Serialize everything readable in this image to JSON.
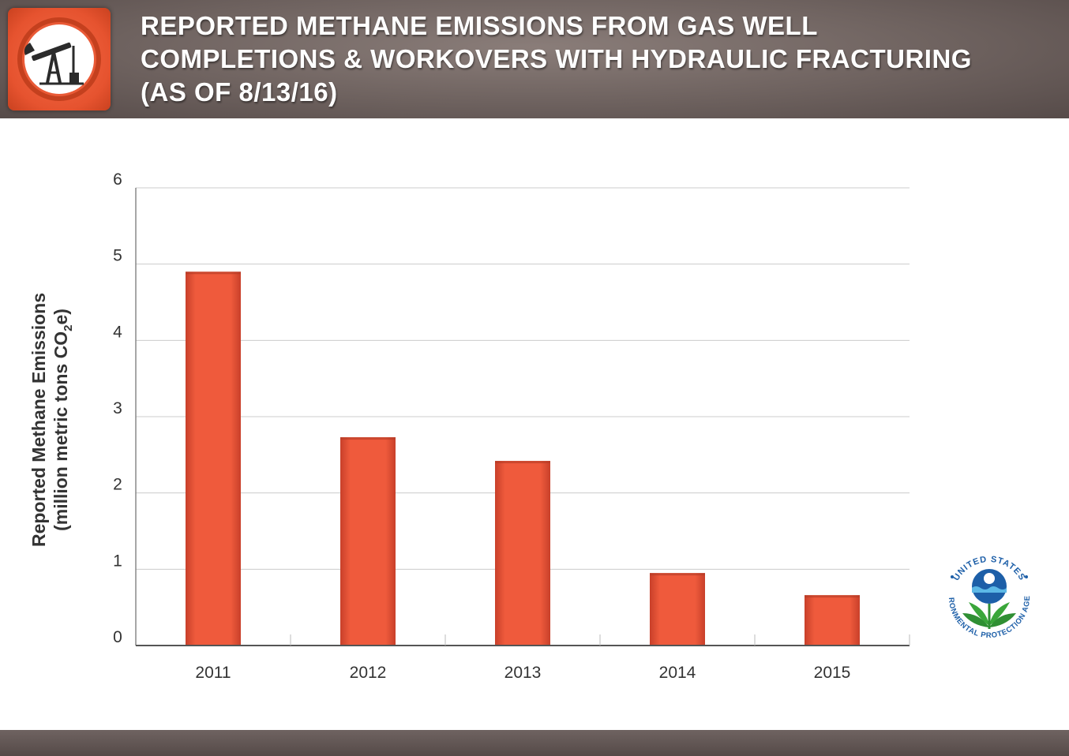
{
  "header": {
    "icon": "oil-pump-icon",
    "title_lines": [
      "REPORTED METHANE EMISSIONS FROM GAS WELL",
      "COMPLETIONS & WORKOVERS WITH HYDRAULIC FRACTURING",
      "(AS OF 8/13/16)"
    ]
  },
  "logo": {
    "icon": "epa-seal-icon",
    "text": "UNITED STATES ENVIRONMENTAL PROTECTION AGENCY"
  },
  "colors": {
    "header_bg": "#6e625f",
    "accent": "#e6532f",
    "bar": "#ee5a3c",
    "axis_text": "#333333",
    "grid": "#cccccc"
  },
  "chart_data": {
    "type": "bar",
    "categories": [
      "2011",
      "2012",
      "2013",
      "2014",
      "2015"
    ],
    "values": [
      4.9,
      2.73,
      2.42,
      0.95,
      0.66
    ],
    "ylim": [
      0,
      6
    ],
    "yticks": [
      "0",
      "1",
      "2",
      "3",
      "4",
      "5",
      "6"
    ],
    "ylabel_line1": "Reported Methane Emissions",
    "ylabel_line2_prefix": "(million metric tons CO",
    "ylabel_line2_sub": "2",
    "ylabel_line2_suffix": "e)",
    "xlabel": "",
    "grid": "horizontal",
    "legend": "none"
  }
}
